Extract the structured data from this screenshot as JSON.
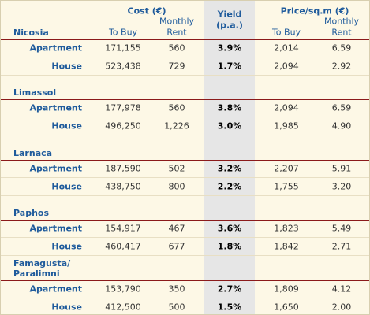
{
  "header": {
    "cost": "Cost (€)",
    "yield": [
      "Yield",
      "(p.a.)"
    ],
    "price": "Price/sq.m (€)",
    "sub": {
      "buy": "To Buy",
      "rent": [
        "Monthly",
        "Rent"
      ]
    }
  },
  "regions": [
    {
      "name": "Nicosia",
      "rows": [
        [
          "Apartment",
          "171,155",
          "560",
          "3.9%",
          "2,014",
          "6.59"
        ],
        [
          "House",
          "523,438",
          "729",
          "1.7%",
          "2,094",
          "2.92"
        ]
      ]
    },
    {
      "name": "Limassol",
      "rows": [
        [
          "Apartment",
          "177,978",
          "560",
          "3.8%",
          "2,094",
          "6.59"
        ],
        [
          "House",
          "496,250",
          "1,226",
          "3.0%",
          "1,985",
          "4.90"
        ]
      ]
    },
    {
      "name": "Larnaca",
      "rows": [
        [
          "Apartment",
          "187,590",
          "502",
          "3.2%",
          "2,207",
          "5.91"
        ],
        [
          "House",
          "438,750",
          "800",
          "2.2%",
          "1,755",
          "3.20"
        ]
      ]
    },
    {
      "name": "Paphos",
      "rows": [
        [
          "Apartment",
          "154,917",
          "467",
          "3.6%",
          "1,823",
          "5.49"
        ],
        [
          "House",
          "460,417",
          "677",
          "1.8%",
          "1,842",
          "2.71"
        ]
      ]
    },
    {
      "name": "Famagusta/ Paralimni",
      "rows": [
        [
          "Apartment",
          "153,790",
          "350",
          "2.7%",
          "1,809",
          "4.12"
        ],
        [
          "House",
          "412,500",
          "500",
          "1.5%",
          "1,650",
          "2.00"
        ]
      ]
    }
  ]
}
